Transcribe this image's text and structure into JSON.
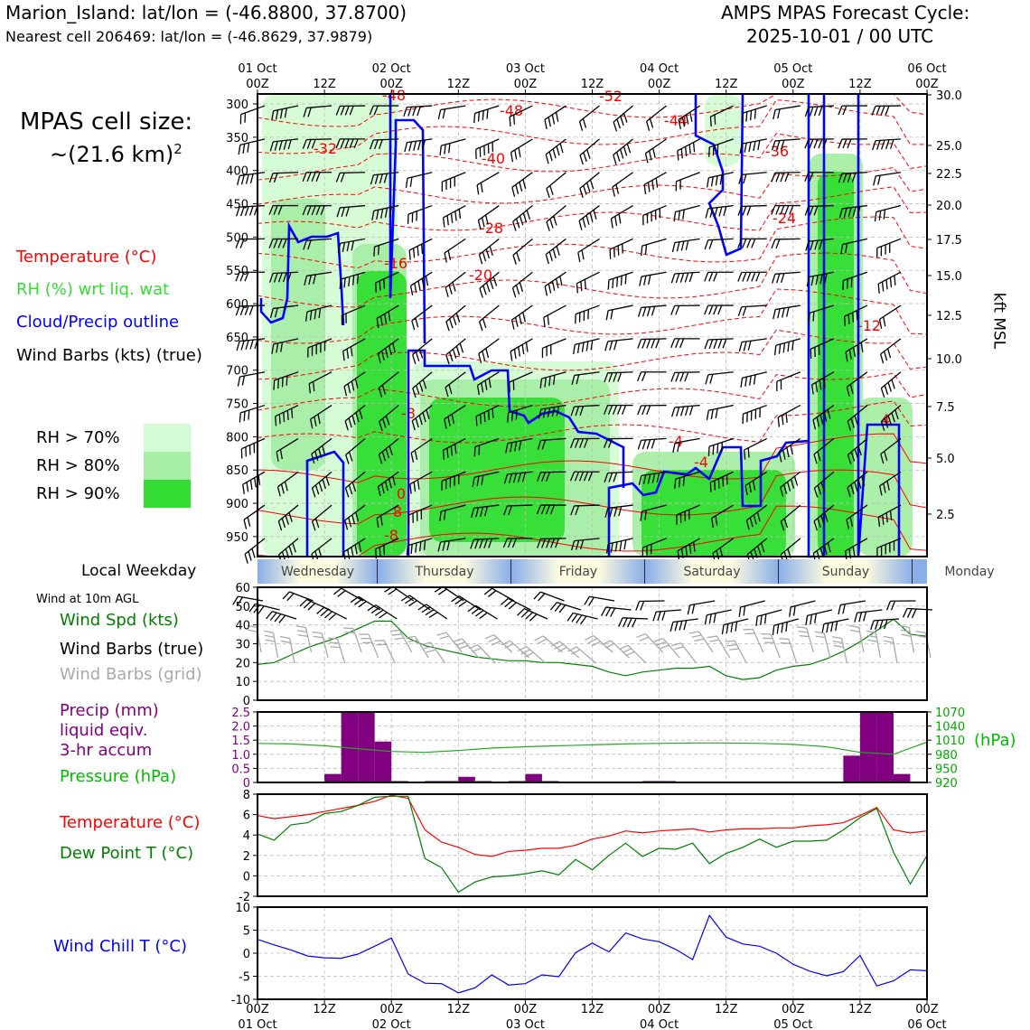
{
  "header": {
    "location_line": "Marion_Island: lat/lon = (-46.8800, 37.8700)",
    "cell_line": "Nearest cell 206469: lat/lon = (-46.8629, 37.9879)",
    "cycle_title": "AMPS MPAS Forecast Cycle:",
    "cycle_date": "2025-10-01 / 00 UTC"
  },
  "left_panel": {
    "cell_size_label": "MPAS cell size:",
    "cell_size_value": "~(21.6 km)",
    "cell_size_exp": "2",
    "legend": {
      "temperature": "Temperature (°C)",
      "rh": "RH (%) wrt liq. wat",
      "cloud": "Cloud/Precip outline",
      "wind": "Wind Barbs (kts) (true)"
    },
    "rh_levels": [
      "RH > 70%",
      "RH > 80%",
      "RH > 90%"
    ],
    "local_weekday": "Local Weekday",
    "wind_10m": "Wind at 10m AGL",
    "wind_legend": [
      "Wind Spd (kts)",
      "Wind Barbs (true)",
      "Wind Barbs (grid)"
    ],
    "precip_legend": [
      "Precip (mm)",
      "liquid eqiv.",
      "3-hr accum"
    ],
    "pressure_legend": "Pressure (hPa)",
    "temp_legend": "Temperature (°C)",
    "dew_legend": "Dew Point T (°C)",
    "chill_legend": "Wind Chill T (°C)",
    "pressure_unit": "(hPa)",
    "kft_label": "kft MSL"
  },
  "colors": {
    "temperature": "#ff0000",
    "rh": "#22cc22",
    "cloud": "#0000ff",
    "wind": "#000000",
    "precip": "#800080",
    "pressure": "#00aa00",
    "grid_barbs": "#aaaaaa",
    "rh70": "#d4fcd4",
    "rh80": "#a6eea6",
    "rh90": "#33dd33"
  },
  "top_axis": {
    "dates": [
      "01 Oct",
      "02 Oct",
      "03 Oct",
      "04 Oct",
      "05 Oct",
      "06 Oct"
    ],
    "hours": [
      "00Z",
      "12Z",
      "00Z",
      "12Z",
      "00Z",
      "12Z",
      "00Z",
      "12Z",
      "00Z",
      "12Z",
      "00Z"
    ]
  },
  "weekdays": [
    "Wednesday",
    "Thursday",
    "Friday",
    "Saturday",
    "Sunday",
    "Monday"
  ],
  "chart_data": [
    {
      "type": "heatmap",
      "name": "time-height cross section",
      "y_pressure_ticks": [
        300,
        350,
        400,
        450,
        500,
        550,
        600,
        650,
        700,
        750,
        800,
        850,
        900,
        950
      ],
      "y_kft_ticks": [
        "30.0",
        "25.0",
        "22.5",
        "20.0",
        "17.5",
        "15.0",
        "12.5",
        "10.0",
        "7.5",
        "5.0",
        "2.5"
      ],
      "temperature_contour_labels": [
        "-52",
        "-48",
        "-48",
        "-44",
        "-40",
        "-36",
        "-32",
        "-28",
        "-24",
        "-20",
        "-16",
        "-12",
        "-8",
        "-4",
        "-4",
        "0",
        "-8",
        "4",
        "8"
      ],
      "x_range_hours": [
        0,
        120
      ]
    },
    {
      "type": "line",
      "name": "10m wind speed",
      "ylabel": "",
      "ylim": [
        0,
        60
      ],
      "y_ticks": [
        0,
        10,
        20,
        30,
        40,
        50,
        60
      ],
      "x_hours": [
        0,
        3,
        6,
        9,
        12,
        15,
        18,
        21,
        24,
        27,
        30,
        33,
        36,
        39,
        42,
        45,
        48,
        51,
        54,
        57,
        60,
        63,
        66,
        69,
        72,
        75,
        78,
        81,
        84,
        87,
        90,
        93,
        96,
        99,
        102,
        105,
        108,
        111,
        114,
        117,
        120
      ],
      "values": [
        19,
        20,
        24,
        28,
        31,
        34,
        38,
        42,
        42,
        33,
        29,
        27,
        25,
        23,
        22,
        21,
        21,
        20,
        20,
        19,
        18,
        15,
        13,
        15,
        16,
        17,
        17,
        18,
        13,
        11,
        12,
        16,
        18,
        19,
        22,
        26,
        31,
        37,
        43,
        35,
        34
      ]
    },
    {
      "type": "bar",
      "name": "3-hr precipitation",
      "ylabel": "",
      "ylim": [
        0,
        2.5
      ],
      "y_ticks": [
        "0",
        "0.5",
        "1.0",
        "1.5",
        "2.0",
        "2.5"
      ],
      "x_hours": [
        15,
        18,
        21,
        24,
        27,
        30,
        33,
        36,
        39,
        42,
        45,
        48,
        51,
        54,
        57,
        60,
        63,
        66,
        69,
        72,
        75,
        78,
        81,
        84,
        87,
        90,
        93,
        96,
        99,
        102,
        105,
        108,
        111,
        114,
        117
      ],
      "values": [
        0.3,
        2.5,
        2.5,
        1.45,
        0.05,
        0.0,
        0.05,
        0.05,
        0.2,
        0.05,
        0.0,
        0.05,
        0.3,
        0.05,
        0.0,
        0.0,
        0.0,
        0.0,
        0.0,
        0.05,
        0.05,
        0.0,
        0.0,
        0.0,
        0.0,
        0.0,
        0.0,
        0.0,
        0.0,
        0.0,
        0.0,
        0.95,
        2.5,
        2.5,
        0.3
      ]
    },
    {
      "type": "line",
      "name": "surface pressure",
      "ylim": [
        920,
        1070
      ],
      "y_ticks": [
        "1070",
        "1040",
        "1010",
        "980",
        "950",
        "920"
      ],
      "x_hours": [
        0,
        6,
        12,
        18,
        24,
        30,
        36,
        42,
        48,
        54,
        60,
        66,
        72,
        78,
        84,
        90,
        96,
        102,
        108,
        114,
        120
      ],
      "values": [
        1003,
        1002,
        998,
        992,
        986,
        984,
        988,
        993,
        996,
        998,
        1000,
        1002,
        1003,
        1004,
        1004,
        1003,
        1001,
        996,
        984,
        980,
        1006
      ]
    },
    {
      "type": "line",
      "name": "temperature and dew point",
      "ylim": [
        -2,
        8
      ],
      "y_ticks": [
        -2,
        0,
        2,
        4,
        6,
        8
      ],
      "x_hours": [
        0,
        3,
        6,
        9,
        12,
        15,
        18,
        21,
        24,
        27,
        30,
        33,
        36,
        39,
        42,
        45,
        48,
        51,
        54,
        57,
        60,
        63,
        66,
        69,
        72,
        75,
        78,
        81,
        84,
        87,
        90,
        93,
        96,
        99,
        102,
        105,
        108,
        111,
        114,
        117,
        120
      ],
      "series": [
        {
          "name": "Temperature (°C)",
          "values": [
            5.9,
            5.6,
            5.8,
            6.0,
            6.3,
            6.6,
            6.9,
            7.3,
            7.9,
            7.6,
            4.5,
            3.3,
            2.8,
            2.1,
            1.9,
            2.4,
            2.5,
            2.7,
            2.7,
            3.0,
            3.6,
            3.9,
            4.4,
            4.2,
            4.4,
            4.5,
            4.6,
            4.3,
            4.5,
            4.6,
            4.6,
            4.7,
            4.7,
            4.9,
            5.0,
            5.2,
            5.9,
            6.7,
            4.5,
            4.2,
            4.4
          ]
        },
        {
          "name": "Dew Point T (°C)",
          "values": [
            4.1,
            3.5,
            5.0,
            5.2,
            6.1,
            6.3,
            6.9,
            7.7,
            7.8,
            7.8,
            1.7,
            0.8,
            -1.6,
            -0.6,
            -0.1,
            0.0,
            0.2,
            0.5,
            0.1,
            1.6,
            0.6,
            2.0,
            3.2,
            1.9,
            2.7,
            2.6,
            3.2,
            1.2,
            2.2,
            2.8,
            3.6,
            2.8,
            3.4,
            3.4,
            3.5,
            4.5,
            5.7,
            6.6,
            2.3,
            -0.8,
            2.0
          ]
        }
      ]
    },
    {
      "type": "line",
      "name": "wind chill",
      "ylim": [
        -10,
        10
      ],
      "y_ticks": [
        -10,
        -5,
        0,
        5,
        10
      ],
      "x_hours": [
        0,
        3,
        6,
        9,
        12,
        15,
        18,
        21,
        24,
        27,
        30,
        33,
        36,
        39,
        42,
        45,
        48,
        51,
        54,
        57,
        60,
        63,
        66,
        69,
        72,
        75,
        78,
        81,
        84,
        87,
        90,
        93,
        96,
        99,
        102,
        105,
        108,
        111,
        114,
        117,
        120
      ],
      "values": [
        3.0,
        1.8,
        0.7,
        -0.6,
        -1.0,
        -1.1,
        -0.2,
        1.5,
        3.3,
        -4.5,
        -6.5,
        -6.6,
        -8.6,
        -7.5,
        -4.7,
        -6.9,
        -6.6,
        -4.7,
        -5.1,
        0.1,
        2.2,
        0.3,
        4.4,
        3.1,
        2.5,
        0.8,
        -1.4,
        8.2,
        3.5,
        2.0,
        1.5,
        0.0,
        -2.4,
        -3.9,
        -4.9,
        -4.0,
        -0.5,
        -7.1,
        -6.0,
        -3.6,
        -3.8
      ]
    }
  ]
}
